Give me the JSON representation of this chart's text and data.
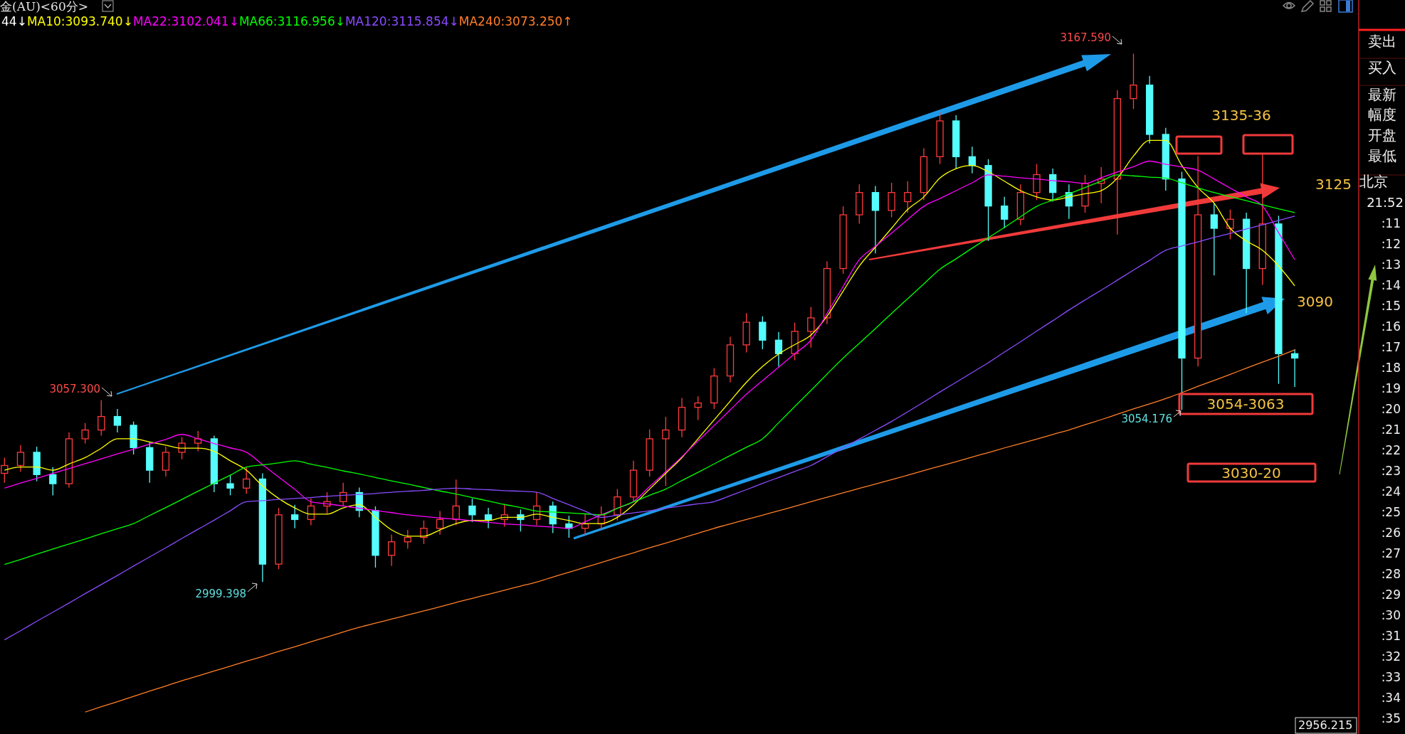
{
  "chart_data": {
    "type": "candlestick",
    "title": "金(AU)<60分>",
    "legend": "top left",
    "categories": [
      null,
      null,
      null,
      null,
      null,
      null,
      null,
      null,
      null,
      null,
      null,
      null,
      null,
      null,
      null,
      null,
      null,
      null,
      null,
      null,
      null,
      null,
      null,
      null,
      null,
      null,
      null,
      null,
      null,
      null,
      null,
      null,
      null,
      null,
      null,
      null,
      null,
      null,
      null,
      null,
      null,
      null,
      null,
      null,
      null,
      null,
      null,
      null,
      null,
      null,
      null,
      null,
      null,
      null,
      null,
      null,
      null,
      null,
      null,
      null,
      null,
      null,
      null,
      null,
      null,
      null,
      null,
      null,
      null,
      null,
      null,
      null,
      null,
      null,
      null,
      null,
      null,
      null,
      null,
      null,
      null
    ],
    "ohlc": [
      [
        3034.0,
        3039.0,
        3031.0,
        3036.5
      ],
      [
        3036.5,
        3043.0,
        3034.5,
        3040.7
      ],
      [
        3040.7,
        3042.5,
        3031.5,
        3033.6
      ],
      [
        3033.6,
        3036.0,
        3027.0,
        3030.7
      ],
      [
        3030.7,
        3047.0,
        3029.5,
        3045.0
      ],
      [
        3045.0,
        3050.0,
        3043.5,
        3047.8
      ],
      [
        3047.8,
        3057.3,
        3046.0,
        3052.1
      ],
      [
        3052.1,
        3054.5,
        3047.0,
        3049.3
      ],
      [
        3049.3,
        3050.5,
        3040.0,
        3042.2
      ],
      [
        3042.2,
        3044.0,
        3031.0,
        3035.0
      ],
      [
        3035.0,
        3042.5,
        3033.0,
        3040.7
      ],
      [
        3040.7,
        3045.5,
        3038.5,
        3043.6
      ],
      [
        3043.6,
        3047.5,
        3041.0,
        3045.0
      ],
      [
        3045.0,
        3046.0,
        3028.0,
        3030.7
      ],
      [
        3030.7,
        3033.5,
        3027.0,
        3029.3
      ],
      [
        3029.3,
        3036.0,
        3027.5,
        3032.2
      ],
      [
        3032.2,
        3034.0,
        2999.398,
        3005.1
      ],
      [
        3005.1,
        3023.0,
        3003.5,
        3020.8
      ],
      [
        3020.8,
        3024.0,
        3016.5,
        3019.3
      ],
      [
        3019.3,
        3026.0,
        3017.5,
        3023.6
      ],
      [
        3023.6,
        3028.0,
        3021.0,
        3025.0
      ],
      [
        3025.0,
        3031.0,
        3023.5,
        3027.9
      ],
      [
        3027.9,
        3029.5,
        3020.0,
        3022.2
      ],
      [
        3022.2,
        3023.5,
        3004.0,
        3007.9
      ],
      [
        3007.9,
        3014.5,
        3004.5,
        3012.2
      ],
      [
        3012.2,
        3016.0,
        3010.0,
        3013.6
      ],
      [
        3013.6,
        3019.0,
        3011.5,
        3016.5
      ],
      [
        3016.5,
        3022.0,
        3014.5,
        3019.3
      ],
      [
        3019.3,
        3032.0,
        3017.5,
        3023.6
      ],
      [
        3023.6,
        3026.0,
        3018.5,
        3020.8
      ],
      [
        3020.8,
        3023.0,
        3016.5,
        3019.3
      ],
      [
        3019.3,
        3024.0,
        3017.0,
        3020.8
      ],
      [
        3020.8,
        3022.5,
        3015.5,
        3019.3
      ],
      [
        3019.3,
        3028.0,
        3017.5,
        3023.6
      ],
      [
        3023.6,
        3025.0,
        3015.0,
        3017.9
      ],
      [
        3017.9,
        3020.5,
        3013.5,
        3016.5
      ],
      [
        3016.5,
        3021.0,
        3014.5,
        3017.9
      ],
      [
        3017.9,
        3023.5,
        3016.0,
        3020.8
      ],
      [
        3020.8,
        3029.0,
        3019.0,
        3026.5
      ],
      [
        3026.5,
        3038.0,
        3025.0,
        3035.0
      ],
      [
        3035.0,
        3048.0,
        3033.0,
        3045.0
      ],
      [
        3045.0,
        3052.0,
        3030.0,
        3047.8
      ],
      [
        3047.8,
        3058.0,
        3045.5,
        3055.0
      ],
      [
        3055.0,
        3058.5,
        3051.0,
        3056.4
      ],
      [
        3056.4,
        3067.5,
        3054.5,
        3065.0
      ],
      [
        3065.0,
        3077.5,
        3063.0,
        3074.9
      ],
      [
        3074.9,
        3085.0,
        3072.5,
        3082.1
      ],
      [
        3082.1,
        3084.0,
        3073.5,
        3076.4
      ],
      [
        3076.4,
        3079.0,
        3068.0,
        3072.1
      ],
      [
        3072.1,
        3082.0,
        3070.0,
        3079.2
      ],
      [
        3079.2,
        3087.0,
        3074.0,
        3083.5
      ],
      [
        3083.5,
        3101.5,
        3081.5,
        3099.2
      ],
      [
        3099.2,
        3119.0,
        3097.5,
        3116.3
      ],
      [
        3116.3,
        3126.0,
        3113.5,
        3123.4
      ],
      [
        3123.4,
        3125.5,
        3104.0,
        3117.7
      ],
      [
        3117.7,
        3126.5,
        3115.5,
        3123.4
      ],
      [
        3120.5,
        3127.0,
        3117.0,
        3123.4
      ],
      [
        3123.4,
        3137.5,
        3121.0,
        3134.8
      ],
      [
        3134.8,
        3149.0,
        3132.5,
        3146.2
      ],
      [
        3146.2,
        3148.0,
        3131.0,
        3134.8
      ],
      [
        3134.8,
        3138.0,
        3129.5,
        3132.0
      ],
      [
        3132.0,
        3134.0,
        3108.0,
        3119.1
      ],
      [
        3119.1,
        3122.0,
        3112.0,
        3114.9
      ],
      [
        3114.9,
        3126.0,
        3113.0,
        3123.4
      ],
      [
        3123.4,
        3132.5,
        3121.0,
        3129.1
      ],
      [
        3129.1,
        3131.0,
        3120.5,
        3123.4
      ],
      [
        3123.4,
        3126.0,
        3115.0,
        3119.1
      ],
      [
        3119.1,
        3129.0,
        3117.0,
        3126.3
      ],
      [
        3126.3,
        3131.5,
        3120.0,
        3127.7
      ],
      [
        3127.7,
        3156.0,
        3110.0,
        3153.3
      ],
      [
        3153.3,
        3167.59,
        3150.0,
        3157.6
      ],
      [
        3157.6,
        3160.5,
        3139.0,
        3141.9
      ],
      [
        3141.9,
        3144.0,
        3124.0,
        3127.7
      ],
      [
        3127.7,
        3130.0,
        3054.176,
        3070.7
      ],
      [
        3070.7,
        3135.0,
        3068.0,
        3116.3
      ],
      [
        3116.3,
        3120.0,
        3097.0,
        3112.0
      ],
      [
        3112.0,
        3118.0,
        3108.5,
        3114.9
      ],
      [
        3114.9,
        3117.0,
        3085.0,
        3099.2
      ],
      [
        3099.2,
        3135.5,
        3094.0,
        3113.4
      ],
      [
        3113.4,
        3116.0,
        3062.5,
        3072.1
      ],
      [
        3072.1,
        3073.5,
        3061.5,
        3070.7
      ]
    ],
    "series": [
      {
        "type": "line",
        "name": "MA10:3093.740↓",
        "color": "#ffff00",
        "values": [
          3035,
          3036,
          3036,
          3035,
          3037,
          3039,
          3042,
          3045,
          3045,
          3044,
          3043,
          3042,
          3042,
          3041,
          3038,
          3035,
          3030,
          3026,
          3023,
          3021,
          3021,
          3023,
          3024,
          3020,
          3016,
          3014,
          3014,
          3016,
          3018,
          3019,
          3019,
          3020,
          3020,
          3021,
          3020,
          3019,
          3018,
          3018,
          3020,
          3024,
          3029,
          3034,
          3039,
          3045,
          3051,
          3057,
          3063,
          3068,
          3072,
          3075,
          3078,
          3084,
          3092,
          3100,
          3106,
          3112,
          3118,
          3122,
          3128,
          3131,
          3132,
          3130,
          3127,
          3124,
          3122,
          3121,
          3122,
          3123,
          3124,
          3128,
          3135,
          3140,
          3140,
          3132,
          3125,
          3120,
          3112,
          3108,
          3105,
          3100,
          3093.7
        ]
      },
      {
        "type": "line",
        "name": "MA22:3102.041↓",
        "color": "#ff00ff",
        "values": [
          3029.3,
          3030.9,
          3032.4,
          3034,
          3035.5,
          3037.1,
          3038.6,
          3040.2,
          3041.7,
          3043.3,
          3044.8,
          3046.4,
          3045,
          3043.5,
          3042.1,
          3040.7,
          3036.8,
          3032.8,
          3028.9,
          3025,
          3024.3,
          3023.6,
          3022.9,
          3022.2,
          3021.5,
          3020.8,
          3020.3,
          3019.8,
          3019.4,
          3018.9,
          3018.4,
          3017.9,
          3017.6,
          3017.2,
          3016.9,
          3016.5,
          3018.6,
          3020.8,
          3022.9,
          3025,
          3029.8,
          3034.5,
          3039.3,
          3044.3,
          3049.2,
          3054.2,
          3059.2,
          3063.5,
          3067.8,
          3072.1,
          3076.4,
          3084.9,
          3093.5,
          3102,
          3106.3,
          3110.5,
          3114.8,
          3119,
          3121.5,
          3124,
          3126.5,
          3129,
          3128.6,
          3128.1,
          3127.7,
          3127.2,
          3126.8,
          3126.3,
          3128.1,
          3129.9,
          3131.6,
          3133.4,
          3132.4,
          3131.5,
          3130.5,
          3127.7,
          3124.8,
          3122,
          3119.1,
          3110.6,
          3102.0
        ]
      },
      {
        "type": "line",
        "name": "MA66:3116.956↓",
        "color": "#00ff00",
        "values": [
          3005,
          3006.6,
          3008.3,
          3009.9,
          3011.5,
          3013.1,
          3014.8,
          3016.4,
          3018,
          3020.6,
          3023.1,
          3025.7,
          3028.3,
          3030.9,
          3033.4,
          3036,
          3036.7,
          3037.3,
          3038,
          3036.9,
          3035.9,
          3034.8,
          3033.8,
          3032.7,
          3031.6,
          3030.6,
          3029.5,
          3028.4,
          3027.4,
          3026.3,
          3025.2,
          3024.1,
          3023.1,
          3022,
          3021.7,
          3021.4,
          3021.1,
          3020.8,
          3022.9,
          3024.9,
          3027,
          3029,
          3031.7,
          3034.3,
          3037,
          3039.7,
          3042.3,
          3045,
          3050.1,
          3055.3,
          3060.4,
          3065.6,
          3070.7,
          3075.4,
          3080.1,
          3084.9,
          3089.6,
          3094.3,
          3099,
          3102.3,
          3105.7,
          3109,
          3112.3,
          3115.7,
          3119,
          3121,
          3123,
          3125,
          3127,
          3129,
          3128.7,
          3128.3,
          3128,
          3126.5,
          3124.9,
          3123.4,
          3122.1,
          3120.8,
          3119.5,
          3118.2,
          3117.0
        ]
      },
      {
        "type": "line",
        "name": "MA120:3115.854↓",
        "color": "#8a4bff",
        "values": [
          2981,
          2983.9,
          2986.9,
          2989.8,
          2992.7,
          2995.7,
          2998.6,
          3001.5,
          3004.5,
          3007.4,
          3010.3,
          3013.3,
          3016.2,
          3019.1,
          3022.1,
          3025,
          3025.3,
          3025.7,
          3026,
          3026.3,
          3026.7,
          3027,
          3027.3,
          3027.6,
          3028,
          3028.3,
          3028.6,
          3029,
          3029.3,
          3029,
          3028.8,
          3028.5,
          3028.3,
          3028,
          3026,
          3024,
          3022,
          3020,
          3020.7,
          3021.4,
          3022.1,
          3022.9,
          3023.6,
          3024.3,
          3025,
          3026.9,
          3028.8,
          3030.8,
          3032.7,
          3034.6,
          3036.5,
          3039.3,
          3042.1,
          3044.9,
          3047.7,
          3050.5,
          3053.6,
          3056.7,
          3059.9,
          3063,
          3066.1,
          3069.2,
          3072.6,
          3075.9,
          3079.3,
          3082.6,
          3086,
          3089.2,
          3092.3,
          3095.5,
          3098.7,
          3101.8,
          3105,
          3106.4,
          3107.7,
          3109.1,
          3110.4,
          3111.8,
          3113.1,
          3114.5,
          3115.9
        ]
      },
      {
        "type": "line",
        "name": "MA240:3073.250↑",
        "color": "#ff7f27",
        "values": [
          null,
          null,
          null,
          null,
          null,
          2958,
          2959.7,
          2961.3,
          2963,
          2964.7,
          2966.3,
          2968,
          2969.5,
          2971.1,
          2972.6,
          2974.2,
          2975.7,
          2977.3,
          2978.8,
          2980.4,
          2981.9,
          2983.5,
          2985,
          2986.3,
          2987.6,
          2988.9,
          2990.2,
          2991.5,
          2992.9,
          2994.2,
          2995.5,
          2996.8,
          2998.1,
          2999.4,
          3001,
          3002.5,
          3004.1,
          3005.6,
          3007.2,
          3008.7,
          3010.3,
          3011.8,
          3013.4,
          3014.9,
          3016.5,
          3017.9,
          3019.3,
          3020.7,
          3022.1,
          3023.5,
          3025,
          3026.4,
          3027.8,
          3029.2,
          3030.6,
          3032,
          3033.4,
          3034.9,
          3036.3,
          3037.7,
          3039.2,
          3040.6,
          3042.1,
          3043.5,
          3044.9,
          3046.4,
          3047.8,
          3049.5,
          3051.1,
          3052.8,
          3054.5,
          3056.1,
          3057.8,
          3059.7,
          3061.7,
          3063.6,
          3065.5,
          3067.5,
          3069.4,
          3071.3,
          3073.3
        ]
      }
    ],
    "annotations": [
      "44↓",
      "卖出",
      "买入",
      "最新",
      "幅度",
      "开盘",
      "最低",
      "北京",
      "21:52",
      ":11",
      ":12",
      ":13",
      ":14",
      ":15",
      ":16",
      ":17",
      ":18",
      ":19",
      ":20",
      ":21",
      ":22",
      ":23",
      ":24",
      ":25",
      ":26",
      ":27",
      ":28",
      ":29",
      ":30",
      ":31",
      ":32",
      ":33",
      ":34",
      ":35",
      "3135-36",
      "3054-3063",
      "3030-20",
      "3057.300",
      "2999.398",
      "3167.590",
      "3054.176",
      "3125",
      "3090",
      "2956.215"
    ]
  }
}
